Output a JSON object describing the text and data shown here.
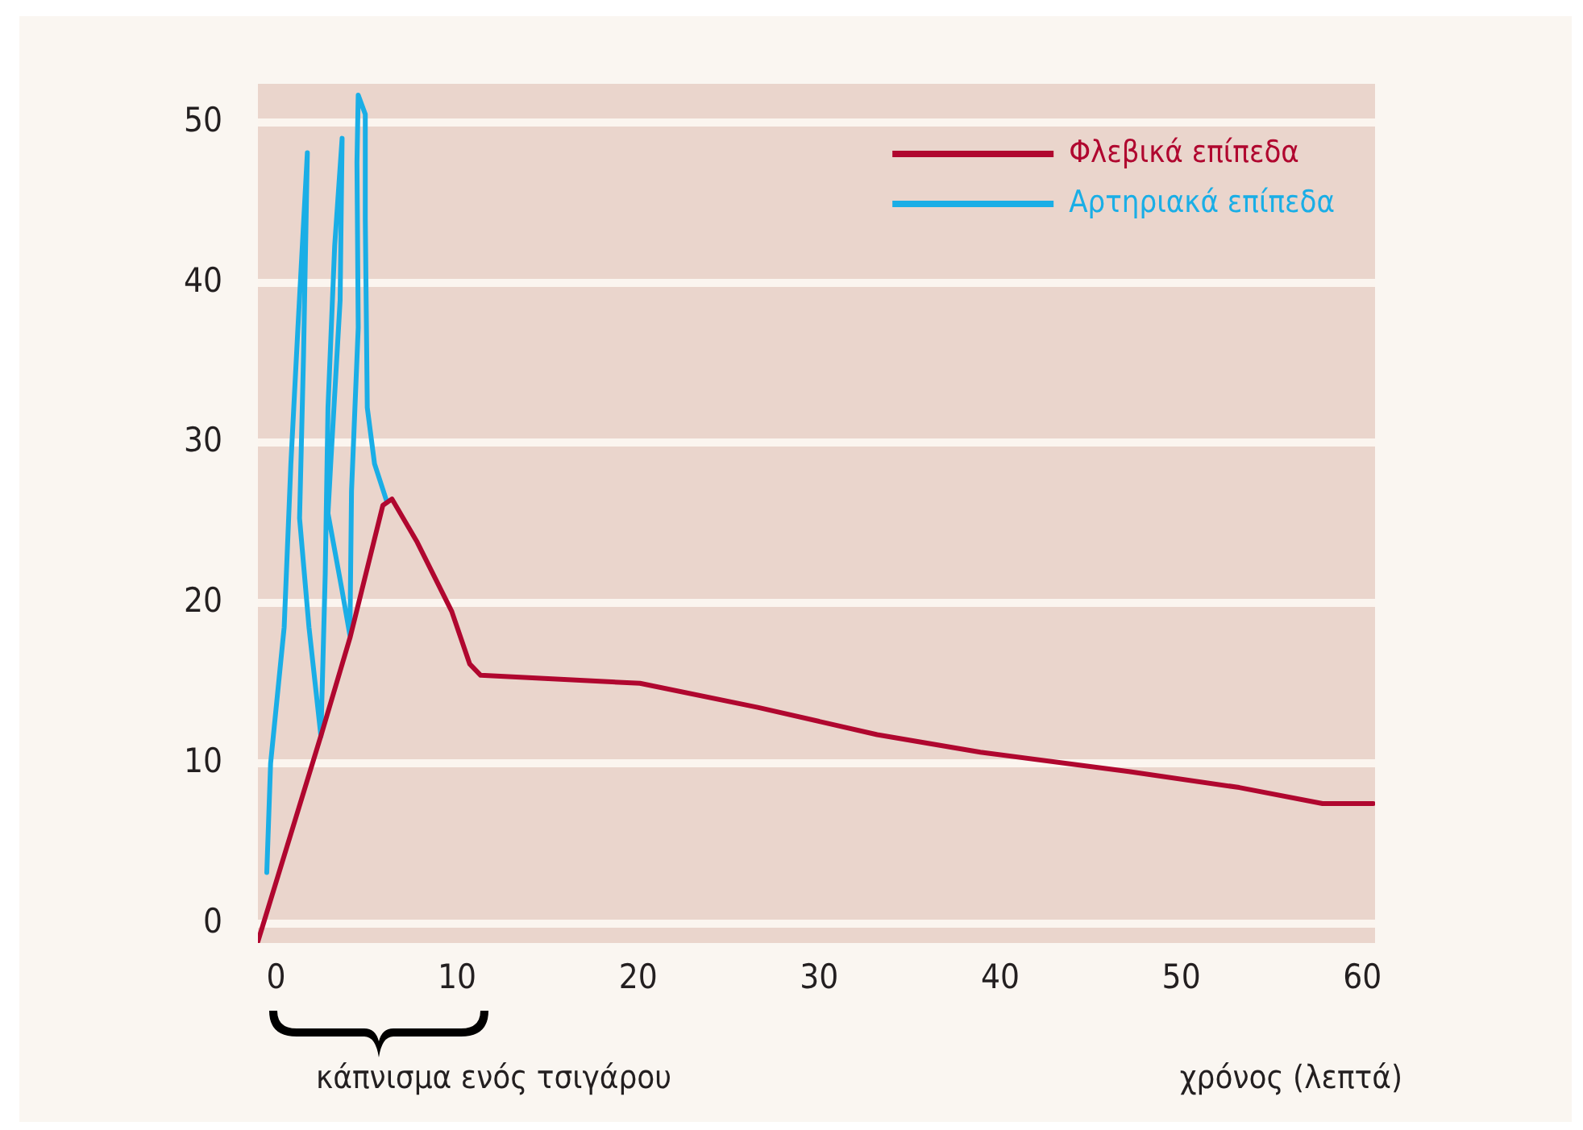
{
  "chart_data": {
    "type": "line",
    "xlabel": "χρόνος (λεπτά)",
    "annotations": [
      "κάπνισμα ενός τσιγάρου"
    ],
    "xlim": [
      -1,
      60.7
    ],
    "ylim": [
      -1.2,
      52.4
    ],
    "xticks": [
      0,
      10,
      20,
      30,
      40,
      50,
      60
    ],
    "yticks": [
      0,
      10,
      20,
      30,
      40,
      50
    ],
    "grid": "y",
    "legend": "top right",
    "marker": "none",
    "line_style": "solid",
    "series": [
      {
        "name": "Φλεβικά επίπεδα",
        "color": "#b0072f",
        "x": [
          -1.0,
          2.5,
          4.1,
          5.9,
          6.4,
          7.8,
          9.7,
          10.7,
          11.3,
          20.1,
          26.6,
          33.2,
          38.9,
          47.1,
          53.2,
          57.8,
          60.6
        ],
        "values": [
          -1.1,
          11.8,
          17.9,
          26.1,
          26.5,
          23.8,
          19.5,
          16.2,
          15.5,
          15.0,
          13.5,
          11.8,
          10.7,
          9.5,
          8.5,
          7.5,
          7.5
        ]
      },
      {
        "name": "Αρτηριακά επίπεδα",
        "color": "#1aaee6",
        "x": [
          -0.51,
          -0.3,
          0.45,
          0.82,
          1.21,
          1.73,
          1.52,
          1.3,
          1.82,
          2.48,
          2.72,
          2.87,
          3.24,
          3.65,
          3.54,
          3.02,
          2.87,
          3.63,
          4.08,
          4.17,
          4.54,
          4.47,
          4.54,
          4.93,
          4.93,
          5.04,
          5.44,
          6.13
        ],
        "values": [
          3.2,
          10.0,
          18.5,
          28.7,
          37.2,
          48.1,
          35.5,
          25.3,
          18.5,
          11.7,
          21.9,
          32.2,
          42.3,
          49.0,
          38.9,
          28.7,
          25.6,
          20.9,
          18.0,
          27.0,
          37.2,
          47.5,
          51.7,
          50.5,
          44.0,
          32.2,
          28.7,
          26.3
        ]
      }
    ]
  }
}
